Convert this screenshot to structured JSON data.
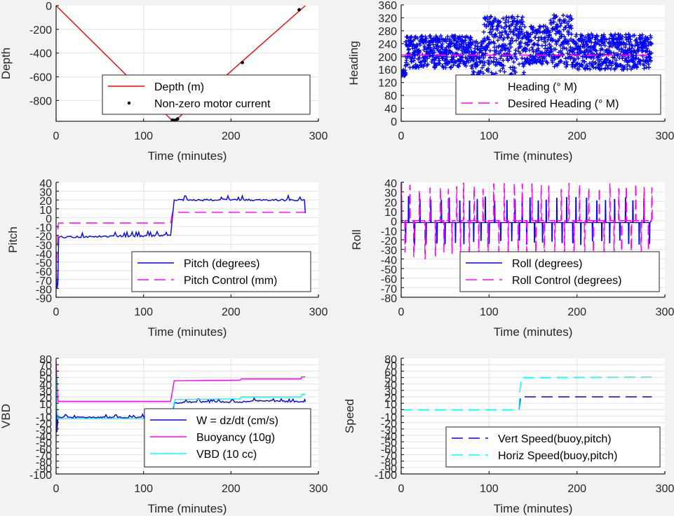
{
  "chart_data": [
    {
      "id": "depth",
      "type": "line",
      "ylabel": "Depth",
      "xlabel": "Time (minutes)",
      "xlim": [
        0,
        300
      ],
      "ylim": [
        -975,
        0
      ],
      "xticks": [
        0,
        100,
        200,
        300
      ],
      "yticks": [
        0,
        -200,
        -400,
        -600,
        -800
      ],
      "grid": true,
      "legend_position": "bottom-right",
      "series": [
        {
          "name": "Depth (m)",
          "color": "#ff0000",
          "style": "solid",
          "x": [
            0,
            133,
            136,
            285
          ],
          "y": [
            0,
            -970,
            -970,
            0
          ]
        },
        {
          "name": "Non-zero motor current",
          "color": "#000000",
          "style": "marker",
          "x": [
            133,
            134,
            135,
            136,
            137,
            139,
            213,
            278
          ],
          "y": [
            -965,
            -968,
            -970,
            -968,
            -965,
            -955,
            -480,
            -35
          ]
        }
      ]
    },
    {
      "id": "heading",
      "type": "scatter",
      "ylabel": "Heading",
      "xlabel": "Time (minutes)",
      "xlim": [
        0,
        300
      ],
      "ylim": [
        0,
        360
      ],
      "xticks": [
        0,
        100,
        200,
        300
      ],
      "yticks": [
        0,
        40,
        80,
        120,
        160,
        200,
        240,
        280,
        320,
        360
      ],
      "grid": true,
      "legend_position": "bottom-right",
      "series": [
        {
          "name": "Heading (° M)",
          "color": "#0000ff",
          "style": "plus",
          "bands": [
            {
              "x0": 0,
              "x1": 5,
              "lo": 140,
              "hi": 160
            },
            {
              "x0": 5,
              "x1": 80,
              "lo": 165,
              "hi": 265
            },
            {
              "x0": 80,
              "x1": 94,
              "lo": 110,
              "hi": 250
            },
            {
              "x0": 94,
              "x1": 140,
              "lo": 140,
              "hi": 325
            },
            {
              "x0": 140,
              "x1": 170,
              "lo": 175,
              "hi": 295
            },
            {
              "x0": 170,
              "x1": 195,
              "lo": 165,
              "hi": 330
            },
            {
              "x0": 195,
              "x1": 285,
              "lo": 160,
              "hi": 270
            }
          ]
        },
        {
          "name": "Desired Heading (° M)",
          "color": "#ff00ff",
          "style": "dashed",
          "x": [
            0,
            285
          ],
          "y": [
            205,
            205
          ]
        }
      ]
    },
    {
      "id": "pitch",
      "type": "line",
      "ylabel": "Pitch",
      "xlabel": "Time (minutes)",
      "xlim": [
        0,
        300
      ],
      "ylim": [
        -90,
        40
      ],
      "xticks": [
        0,
        100,
        200,
        300
      ],
      "yticks": [
        40,
        30,
        20,
        10,
        0,
        -10,
        -20,
        -30,
        -40,
        -50,
        -60,
        -70,
        -80,
        -90
      ],
      "grid": true,
      "legend_position": "bottom-right",
      "series": [
        {
          "name": "Pitch (degrees)",
          "color": "#0000ff",
          "style": "solid",
          "x": [
            0,
            1,
            2,
            3,
            130,
            131,
            133,
            135,
            284,
            285
          ],
          "y": [
            -50,
            -80,
            -75,
            -22,
            -20,
            -20,
            0,
            20,
            20,
            5
          ]
        },
        {
          "name": "Pitch Control (mm)",
          "color": "#ff00ff",
          "style": "dashed",
          "x": [
            0,
            2,
            3,
            131,
            133,
            285
          ],
          "y": [
            -70,
            -10,
            -6,
            -6,
            6,
            6
          ]
        }
      ]
    },
    {
      "id": "roll",
      "type": "line",
      "ylabel": "Roll",
      "xlabel": "Time (minutes)",
      "xlim": [
        0,
        300
      ],
      "ylim": [
        -80,
        40
      ],
      "xticks": [
        0,
        100,
        200,
        300
      ],
      "yticks": [
        40,
        30,
        20,
        10,
        0,
        -10,
        -20,
        -30,
        -40,
        -50,
        -60,
        -70,
        -80
      ],
      "grid": true,
      "legend_position": "bottom-right",
      "series": [
        {
          "name": "Roll (degrees)",
          "color": "#0000ff",
          "style": "solid",
          "baseline": -2,
          "spike": 25
        },
        {
          "name": "Roll Control (degrees)",
          "color": "#ff00ff",
          "style": "dashed",
          "baseline": 0,
          "spike": 40
        }
      ]
    },
    {
      "id": "vbd",
      "type": "line",
      "ylabel": "VBD",
      "xlabel": "Time (minutes)",
      "xlim": [
        0,
        300
      ],
      "ylim": [
        -100,
        80
      ],
      "xticks": [
        0,
        100,
        200,
        300
      ],
      "yticks": [
        80,
        70,
        60,
        50,
        40,
        30,
        20,
        10,
        0,
        -10,
        -20,
        -30,
        -40,
        -50,
        -60,
        -70,
        -80,
        -90,
        -100
      ],
      "grid": true,
      "legend_position": "bottom-right",
      "series": [
        {
          "name": "W = dz/dt (cm/s)",
          "color": "#0000ff",
          "style": "solid",
          "x": [
            0,
            1,
            2,
            3,
            130,
            133,
            135,
            150,
            210,
            235,
            285
          ],
          "y": [
            50,
            -35,
            -15,
            -12,
            -12,
            -10,
            10,
            12,
            12,
            14,
            12
          ]
        },
        {
          "name": "Buoyancy (10g)",
          "color": "#ff00ff",
          "style": "solid",
          "x": [
            0,
            1,
            2,
            131,
            135,
            210,
            212,
            280,
            281,
            285
          ],
          "y": [
            75,
            45,
            13,
            13,
            45,
            46,
            48,
            48,
            51,
            51
          ]
        },
        {
          "name": "VBD (10 cc)",
          "color": "#00ffff",
          "style": "solid",
          "x": [
            0,
            1,
            2,
            131,
            134,
            136,
            210,
            212,
            280,
            281,
            285
          ],
          "y": [
            55,
            0,
            -14,
            -14,
            5,
            16,
            17,
            20,
            20,
            24,
            24
          ]
        }
      ]
    },
    {
      "id": "speed",
      "type": "line",
      "ylabel": "Speed",
      "xlabel": "Time (minutes)",
      "xlim": [
        0,
        300
      ],
      "ylim": [
        -100,
        80
      ],
      "xticks": [
        0,
        100,
        200,
        300
      ],
      "yticks": [
        80,
        70,
        60,
        50,
        40,
        30,
        20,
        10,
        0,
        -10,
        -20,
        -30,
        -40,
        -50,
        -60,
        -70,
        -80,
        -90,
        -100
      ],
      "grid": true,
      "legend_position": "bottom-right",
      "series": [
        {
          "name": "Vert Speed(buoy,pitch)",
          "color": "#0000ff",
          "style": "dashed",
          "x": [
            134,
            135,
            136,
            285
          ],
          "y": [
            0,
            10,
            20,
            20
          ]
        },
        {
          "name": "Horiz Speed(buoy,pitch)",
          "color": "#00ffff",
          "style": "dashed",
          "x": [
            0,
            134,
            135,
            137,
            285
          ],
          "y": [
            0,
            0,
            30,
            50,
            51
          ]
        }
      ]
    }
  ]
}
